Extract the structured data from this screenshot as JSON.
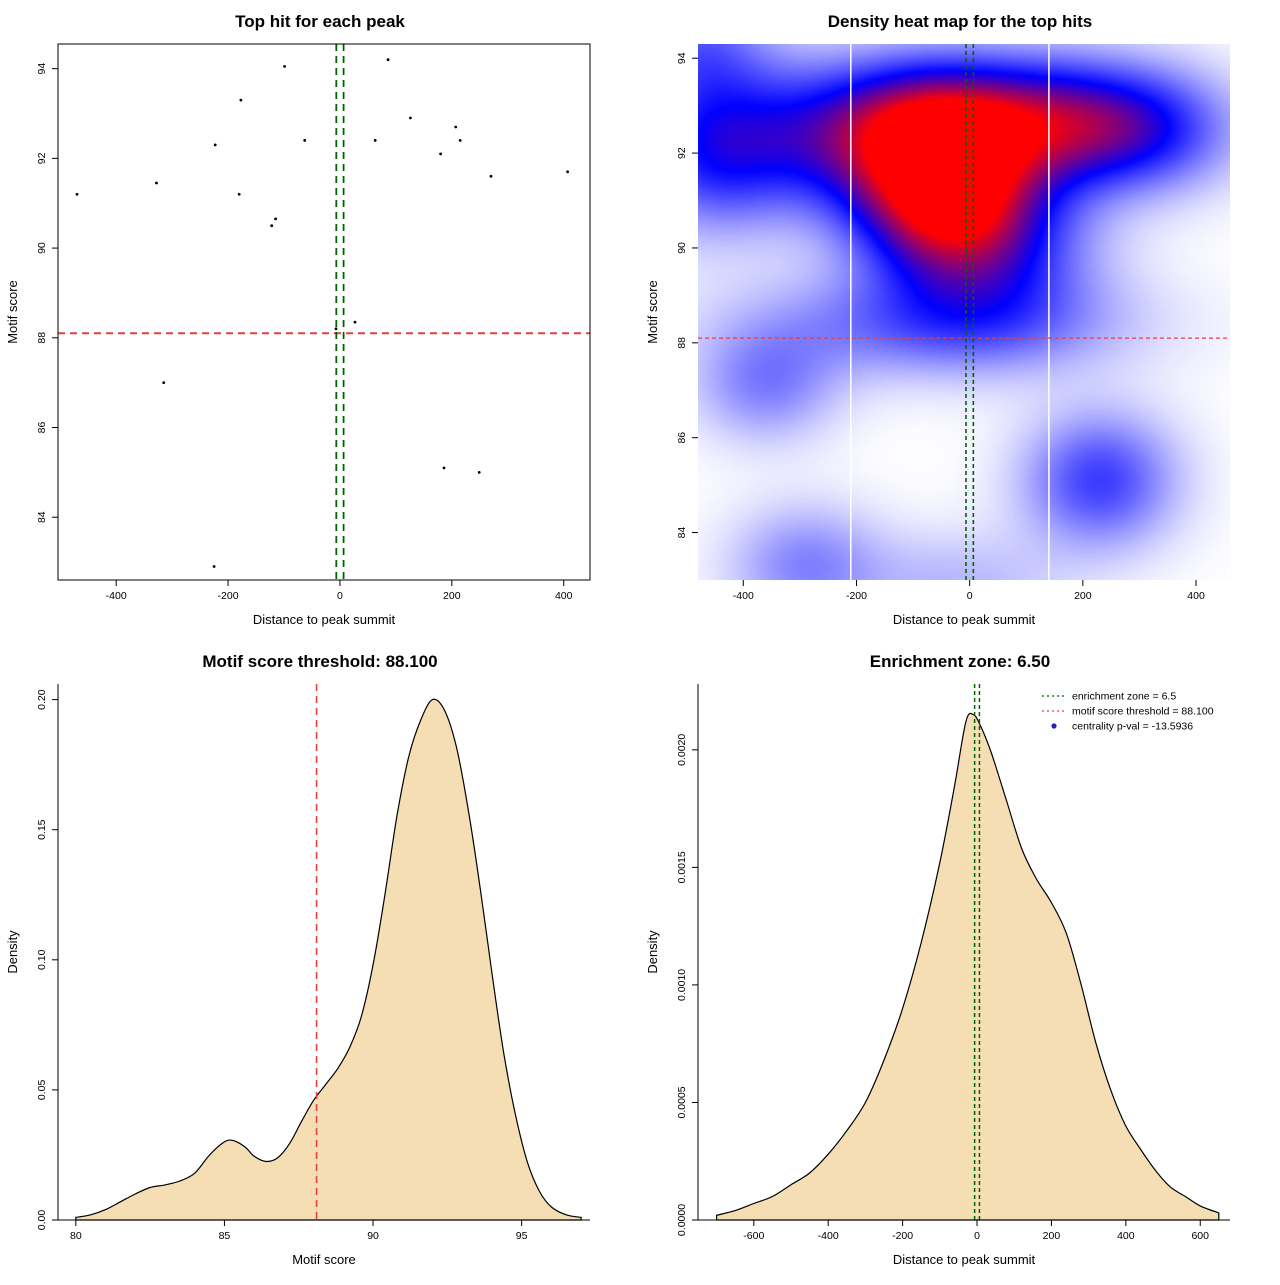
{
  "background": "#ffffff",
  "colors": {
    "threshold_red": "#e04141",
    "zone_green": "#006400",
    "density_fill": "#f5deb3",
    "curve_stroke": "#000000",
    "point_black": "#000000",
    "legend_point_blue": "#2020c0",
    "heatmap_low": "#ffffff",
    "heatmap_mid": "#0000ff",
    "heatmap_high": "#ff0000"
  },
  "chart_data": [
    {
      "id": "top-hits-scatter",
      "type": "scatter",
      "title": "Top hit for each peak",
      "xlabel": "Distance to peak summit",
      "ylabel": "Motif score",
      "box": "full",
      "xlim": [
        -504,
        447
      ],
      "ylim": [
        82.6,
        94.55
      ],
      "xticks": [
        -400,
        -200,
        0,
        200,
        400
      ],
      "xtick_labels": [
        "-400",
        "-200",
        "0",
        "200",
        "400"
      ],
      "yticks": [
        84,
        86,
        88,
        90,
        92,
        94
      ],
      "ytick_labels": [
        "84",
        "86",
        "88",
        "90",
        "92",
        "94"
      ],
      "points": [
        [
          -470,
          91.2
        ],
        [
          -328,
          91.45
        ],
        [
          -315,
          87.0
        ],
        [
          -225,
          82.9
        ],
        [
          -223,
          92.3
        ],
        [
          -180,
          91.2
        ],
        [
          -177,
          93.3
        ],
        [
          -122,
          90.5
        ],
        [
          -115,
          90.65
        ],
        [
          -99,
          94.05
        ],
        [
          -63,
          92.4
        ],
        [
          -7,
          88.2
        ],
        [
          27,
          88.35
        ],
        [
          63,
          92.4
        ],
        [
          86,
          94.2
        ],
        [
          126,
          92.9
        ],
        [
          180,
          92.1
        ],
        [
          186,
          85.1
        ],
        [
          207,
          92.7
        ],
        [
          215,
          92.4
        ],
        [
          249,
          85.0
        ],
        [
          270,
          91.6
        ],
        [
          407,
          91.7
        ]
      ],
      "ref_lines": [
        {
          "name": "motif-threshold-line",
          "orient": "h",
          "value": 88.1,
          "color": "#e04141",
          "style": "dashed",
          "width": 2
        },
        {
          "name": "enrichment-zone-left",
          "orient": "v",
          "value": -6.5,
          "color": "#006400",
          "style": "dashed",
          "width": 1.8
        },
        {
          "name": "enrichment-zone-right",
          "orient": "v",
          "value": 6.5,
          "color": "#006400",
          "style": "dashed",
          "width": 1.8
        }
      ]
    },
    {
      "id": "density-heatmap",
      "type": "heatmap",
      "title": "Density heat map for the top hits",
      "xlabel": "Distance to peak summit",
      "ylabel": "Motif score",
      "box": "none",
      "xlim": [
        -480,
        460
      ],
      "ylim": [
        83.0,
        94.3
      ],
      "xticks": [
        -400,
        -200,
        0,
        200,
        400
      ],
      "xtick_labels": [
        "-400",
        "-200",
        "0",
        "200",
        "400"
      ],
      "yticks": [
        84,
        86,
        88,
        90,
        92,
        94
      ],
      "ytick_labels": [
        "84",
        "86",
        "88",
        "90",
        "92",
        "94"
      ],
      "blobs": [
        {
          "x": -50,
          "y": 91.2,
          "sx": 110,
          "sy": 1.25,
          "w": 0.95
        },
        {
          "x": -30,
          "y": 92.8,
          "sx": 150,
          "sy": 0.9,
          "w": 0.5
        },
        {
          "x": -250,
          "y": 92.3,
          "sx": 170,
          "sy": 1.1,
          "w": 0.45
        },
        {
          "x": -460,
          "y": 92.0,
          "sx": 100,
          "sy": 1.2,
          "w": 0.35
        },
        {
          "x": 180,
          "y": 92.6,
          "sx": 120,
          "sy": 0.95,
          "w": 0.5
        },
        {
          "x": 330,
          "y": 92.5,
          "sx": 110,
          "sy": 0.9,
          "w": 0.35
        },
        {
          "x": 60,
          "y": 90.0,
          "sx": 120,
          "sy": 1.2,
          "w": 0.35
        },
        {
          "x": -60,
          "y": 88.4,
          "sx": 230,
          "sy": 0.8,
          "w": 0.32
        },
        {
          "x": -360,
          "y": 87.1,
          "sx": 90,
          "sy": 0.85,
          "w": 0.26
        },
        {
          "x": 230,
          "y": 85.1,
          "sx": 95,
          "sy": 1.0,
          "w": 0.42
        },
        {
          "x": -290,
          "y": 83.3,
          "sx": 95,
          "sy": 0.9,
          "w": 0.26
        },
        {
          "x": -20,
          "y": 82.9,
          "sx": 130,
          "sy": 0.8,
          "w": 0.15
        },
        {
          "x": -480,
          "y": 94.3,
          "sx": 90,
          "sy": 0.9,
          "w": 0.28
        }
      ],
      "ref_lines": [
        {
          "name": "white-guide-left",
          "orient": "v",
          "value": -210,
          "color": "#ffffff",
          "style": "solid",
          "width": 1.5
        },
        {
          "name": "white-guide-right",
          "orient": "v",
          "value": 140,
          "color": "#ffffff",
          "style": "solid",
          "width": 1.5
        },
        {
          "name": "motif-threshold-line",
          "orient": "h",
          "value": 88.1,
          "color": "#e04141",
          "style": "dashed_fine",
          "width": 1.2
        },
        {
          "name": "enrichment-zone-left",
          "orient": "v",
          "value": -6.5,
          "color": "#006400",
          "style": "dashed_fine",
          "width": 1.6
        },
        {
          "name": "enrichment-zone-right",
          "orient": "v",
          "value": 6.5,
          "color": "#006400",
          "style": "dashed_fine",
          "width": 1.6
        }
      ]
    },
    {
      "id": "motif-score-density",
      "type": "density",
      "title": "Motif score threshold: 88.100",
      "xlabel": "Motif score",
      "ylabel": "Density",
      "box": "l",
      "fill": "#f5deb3",
      "xlim": [
        79.4,
        97.3
      ],
      "ylim": [
        0,
        0.206
      ],
      "xticks": [
        80,
        85,
        90,
        95
      ],
      "xtick_labels": [
        "80",
        "85",
        "90",
        "95"
      ],
      "yticks": [
        0,
        0.05,
        0.1,
        0.15,
        0.2
      ],
      "ytick_labels": [
        "0.00",
        "0.05",
        "0.10",
        "0.15",
        "0.20"
      ],
      "curve": [
        [
          80,
          0.001
        ],
        [
          80.5,
          0.002
        ],
        [
          81,
          0.004
        ],
        [
          81.5,
          0.007
        ],
        [
          82,
          0.01
        ],
        [
          82.5,
          0.0125
        ],
        [
          83,
          0.0135
        ],
        [
          83.5,
          0.015
        ],
        [
          84,
          0.018
        ],
        [
          84.5,
          0.025
        ],
        [
          85,
          0.03
        ],
        [
          85.3,
          0.0305
        ],
        [
          85.7,
          0.028
        ],
        [
          86,
          0.0245
        ],
        [
          86.4,
          0.0225
        ],
        [
          86.8,
          0.024
        ],
        [
          87.2,
          0.0295
        ],
        [
          87.6,
          0.038
        ],
        [
          88,
          0.046
        ],
        [
          88.4,
          0.052
        ],
        [
          88.8,
          0.058
        ],
        [
          89.2,
          0.066
        ],
        [
          89.6,
          0.078
        ],
        [
          90,
          0.098
        ],
        [
          90.4,
          0.125
        ],
        [
          90.8,
          0.155
        ],
        [
          91.2,
          0.178
        ],
        [
          91.6,
          0.192
        ],
        [
          92,
          0.2
        ],
        [
          92.4,
          0.196
        ],
        [
          92.8,
          0.182
        ],
        [
          93.2,
          0.158
        ],
        [
          93.6,
          0.128
        ],
        [
          94,
          0.095
        ],
        [
          94.4,
          0.064
        ],
        [
          94.8,
          0.04
        ],
        [
          95.2,
          0.022
        ],
        [
          95.6,
          0.011
        ],
        [
          96,
          0.005
        ],
        [
          96.5,
          0.002
        ],
        [
          97,
          0.001
        ]
      ],
      "ref_lines": [
        {
          "name": "motif-threshold-line",
          "orient": "v",
          "value": 88.1,
          "color": "#e04141",
          "style": "dashed",
          "width": 1.6
        }
      ]
    },
    {
      "id": "distance-density",
      "type": "density",
      "title": "Enrichment zone: 6.50",
      "xlabel": "Distance to peak summit",
      "ylabel": "Density",
      "box": "l",
      "fill": "#f5deb3",
      "xlim": [
        -750,
        680
      ],
      "ylim": [
        0,
        0.00228
      ],
      "xticks": [
        -600,
        -400,
        -200,
        0,
        200,
        400,
        600
      ],
      "xtick_labels": [
        "-600",
        "-400",
        "-200",
        "0",
        "200",
        "400",
        "600"
      ],
      "yticks": [
        0,
        0.0005,
        0.001,
        0.0015,
        0.002
      ],
      "ytick_labels": [
        "0.0000",
        "0.0005",
        "0.0010",
        "0.0015",
        "0.0020"
      ],
      "curve": [
        [
          -700,
          2e-05
        ],
        [
          -650,
          4e-05
        ],
        [
          -600,
          7e-05
        ],
        [
          -550,
          0.0001
        ],
        [
          -500,
          0.00015
        ],
        [
          -450,
          0.0002
        ],
        [
          -400,
          0.00028
        ],
        [
          -350,
          0.00038
        ],
        [
          -300,
          0.0005
        ],
        [
          -250,
          0.00068
        ],
        [
          -200,
          0.0009
        ],
        [
          -150,
          0.00118
        ],
        [
          -100,
          0.00152
        ],
        [
          -60,
          0.00185
        ],
        [
          -30,
          0.00212
        ],
        [
          -10,
          0.00215
        ],
        [
          10,
          0.0021
        ],
        [
          40,
          0.00198
        ],
        [
          80,
          0.00178
        ],
        [
          120,
          0.00158
        ],
        [
          160,
          0.00145
        ],
        [
          200,
          0.00135
        ],
        [
          240,
          0.00122
        ],
        [
          280,
          0.001
        ],
        [
          320,
          0.00075
        ],
        [
          360,
          0.00055
        ],
        [
          400,
          0.0004
        ],
        [
          440,
          0.0003
        ],
        [
          480,
          0.00021
        ],
        [
          520,
          0.00014
        ],
        [
          560,
          0.0001
        ],
        [
          600,
          6e-05
        ],
        [
          650,
          3e-05
        ]
      ],
      "ref_lines": [
        {
          "name": "enrichment-zone-left",
          "orient": "v",
          "value": -6.5,
          "color": "#006400",
          "style": "dashed_fine",
          "width": 1.5
        },
        {
          "name": "enrichment-zone-right",
          "orient": "v",
          "value": 6.5,
          "color": "#006400",
          "style": "dashed_fine",
          "width": 1.5
        }
      ],
      "legend": {
        "items": [
          {
            "marker": "line",
            "style": "dotted",
            "color": "#006400",
            "label": "enrichment zone = 6.5"
          },
          {
            "marker": "line",
            "style": "dotted",
            "color": "#e04141",
            "label": "motif score threshold = 88.100"
          },
          {
            "marker": "point",
            "color": "#2020c0",
            "label": "centrality p-val = -13.5936"
          }
        ]
      }
    }
  ]
}
